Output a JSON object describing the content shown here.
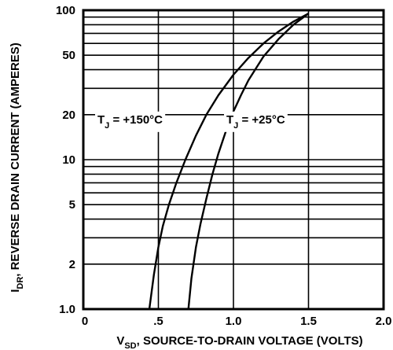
{
  "chart_data": {
    "type": "line",
    "title": "",
    "x_scale": "linear",
    "y_scale": "log",
    "xlim": [
      0,
      2.0
    ],
    "ylim": [
      1.0,
      100
    ],
    "x_ticks": [
      0,
      0.5,
      1.0,
      1.5,
      2.0
    ],
    "x_tick_labels": [
      "0",
      ".5",
      "1.0",
      "1.5",
      "2.0"
    ],
    "y_ticks": [
      1.0,
      2,
      5,
      10,
      20,
      50,
      100
    ],
    "y_tick_labels": [
      "1.0",
      "2",
      "5",
      "10",
      "20",
      "50",
      "100"
    ],
    "y_gridlines": [
      1,
      2,
      3,
      4,
      5,
      6,
      7,
      8,
      9,
      10,
      20,
      30,
      40,
      50,
      60,
      70,
      80,
      90,
      100
    ],
    "grid": true,
    "xlabel": {
      "prefix": "V",
      "subscript": "SD",
      "text": ", SOURCE-TO-DRAIN VOLTAGE (VOLTS)"
    },
    "ylabel": {
      "prefix": "I",
      "subscript": "DR",
      "text": ", REVERSE DRAIN CURRENT (AMPERES)"
    },
    "series": [
      {
        "name": "TJ = +150°C",
        "label": {
          "prefix": "T",
          "subscript": "J",
          "text": " = +150°C"
        },
        "x": [
          0.44,
          0.47,
          0.5,
          0.53,
          0.57,
          0.62,
          0.68,
          0.75,
          0.82,
          0.9,
          1.0,
          1.1,
          1.2,
          1.3,
          1.4,
          1.5
        ],
        "y": [
          1.0,
          1.7,
          2.6,
          3.6,
          5.0,
          7.0,
          10.0,
          14.5,
          20.0,
          27.0,
          37.0,
          48.0,
          60.0,
          72.0,
          84.0,
          95.0
        ]
      },
      {
        "name": "TJ = +25°C",
        "label": {
          "prefix": "T",
          "subscript": "J",
          "text": " = +25°C"
        },
        "x": [
          0.7,
          0.72,
          0.75,
          0.78,
          0.82,
          0.86,
          0.9,
          0.95,
          1.0,
          1.05,
          1.1,
          1.2,
          1.3,
          1.4,
          1.5
        ],
        "y": [
          1.0,
          1.6,
          2.6,
          3.7,
          5.5,
          8.0,
          11.0,
          15.5,
          21.0,
          27.0,
          34.0,
          49.0,
          64.0,
          80.0,
          95.0
        ]
      }
    ]
  }
}
